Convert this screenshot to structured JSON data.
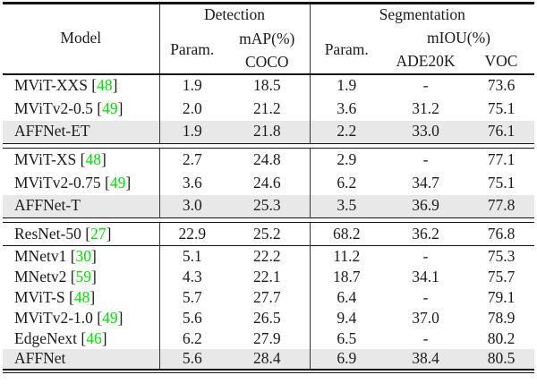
{
  "table": {
    "colors": {
      "citation_green": "#00e100",
      "highlight_gray": "#e8e8e8",
      "rule_black": "#151515"
    },
    "header": {
      "model": "Model",
      "detection": "Detection",
      "segmentation": "Segmentation",
      "det_param": "Param.",
      "det_map_line1": "mAP(%)",
      "det_map_line2": "COCO",
      "seg_param": "Param.",
      "miou": "mIOU(%)",
      "ade20k": "ADE20K",
      "voc": "VOC"
    },
    "rows": [
      {
        "type": "data",
        "model": "MViT-XXS",
        "ref": "48",
        "cells": [
          "1.9",
          "18.5",
          "1.9",
          "-",
          "73.6"
        ],
        "highlight": false,
        "compact": false
      },
      {
        "type": "data",
        "model": "MViTv2-0.5",
        "ref": "49",
        "cells": [
          "2.0",
          "21.2",
          "3.6",
          "31.2",
          "75.1"
        ],
        "highlight": false,
        "compact": false
      },
      {
        "type": "data",
        "model": "AFFNet-ET",
        "ref": null,
        "cells": [
          "1.9",
          "21.8",
          "2.2",
          "33.0",
          "76.1"
        ],
        "highlight": true,
        "compact": false
      },
      {
        "type": "rule-double"
      },
      {
        "type": "data",
        "model": "MViT-XS",
        "ref": "48",
        "cells": [
          "2.7",
          "24.8",
          "2.9",
          "-",
          "77.1"
        ],
        "highlight": false,
        "compact": false
      },
      {
        "type": "data",
        "model": "MViTv2-0.75",
        "ref": "49",
        "cells": [
          "3.6",
          "24.6",
          "6.2",
          "34.7",
          "75.1"
        ],
        "highlight": false,
        "compact": false
      },
      {
        "type": "data",
        "model": "AFFNet-T",
        "ref": null,
        "cells": [
          "3.0",
          "25.3",
          "3.5",
          "36.9",
          "77.8"
        ],
        "highlight": true,
        "compact": false
      },
      {
        "type": "rule-double"
      },
      {
        "type": "data",
        "model": "ResNet-50",
        "ref": "27",
        "cells": [
          "22.9",
          "25.2",
          "68.2",
          "36.2",
          "76.8"
        ],
        "highlight": false,
        "compact": false
      },
      {
        "type": "rule-single"
      },
      {
        "type": "data",
        "model": "MNetv1",
        "ref": "30",
        "cells": [
          "5.1",
          "22.2",
          "11.2",
          "-",
          "75.3"
        ],
        "highlight": false,
        "compact": true
      },
      {
        "type": "data",
        "model": "MNetv2",
        "ref": "59",
        "cells": [
          "4.3",
          "22.1",
          "18.7",
          "34.1",
          "75.7"
        ],
        "highlight": false,
        "compact": true
      },
      {
        "type": "data",
        "model": "MViT-S",
        "ref": "48",
        "cells": [
          "5.7",
          "27.7",
          "6.4",
          "-",
          "79.1"
        ],
        "highlight": false,
        "compact": true
      },
      {
        "type": "data",
        "model": "MViTv2-1.0",
        "ref": "49",
        "cells": [
          "5.6",
          "26.5",
          "9.4",
          "37.0",
          "78.9"
        ],
        "highlight": false,
        "compact": true
      },
      {
        "type": "data",
        "model": "EdgeNext",
        "ref": "46",
        "cells": [
          "6.2",
          "27.9",
          "6.5",
          "-",
          "80.2"
        ],
        "highlight": false,
        "compact": true
      },
      {
        "type": "data",
        "model": "AFFNet",
        "ref": null,
        "cells": [
          "5.6",
          "28.4",
          "6.9",
          "38.4",
          "80.5"
        ],
        "highlight": true,
        "compact": true
      }
    ]
  }
}
